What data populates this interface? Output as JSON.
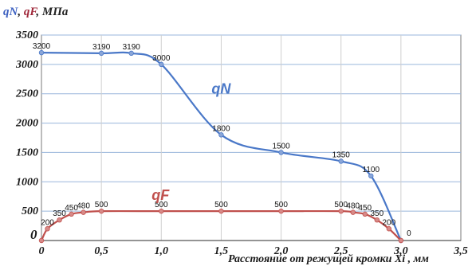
{
  "chart_data": {
    "type": "line",
    "title_parts": [
      {
        "text": "q",
        "color": "#3b5fc0"
      },
      {
        "text": "N",
        "color": "#3b5fc0"
      },
      {
        "text": ", ",
        "color": "#222222"
      },
      {
        "text": "q",
        "color": "#a0283a"
      },
      {
        "text": "F",
        "color": "#a0283a"
      },
      {
        "text": ", МПа",
        "color": "#222222"
      }
    ],
    "xlabel": "Расстояние от режущей кромки Xi , мм",
    "x_ticks": [
      "0",
      "0,5",
      "1,0",
      "1,5",
      "2,0",
      "2,5",
      "3,0",
      "3,5"
    ],
    "y_ticks": [
      "500",
      "1000",
      "1500",
      "2000",
      "2500",
      "3000",
      "3500"
    ],
    "origin_label": "0",
    "xlim": [
      0,
      3.5
    ],
    "ylim": [
      0,
      3500
    ],
    "grid": true,
    "series": [
      {
        "name": "qN",
        "color": "#4a78c8",
        "marker_color": "#8aa6d8",
        "label_pos": [
          1.5,
          2500
        ],
        "points": [
          {
            "x": 0.0,
            "y": 3200,
            "label": "3200"
          },
          {
            "x": 0.5,
            "y": 3190,
            "label": "3190"
          },
          {
            "x": 0.75,
            "y": 3190,
            "label": "3190"
          },
          {
            "x": 1.0,
            "y": 3000,
            "label": "3000"
          },
          {
            "x": 1.5,
            "y": 1800,
            "label": "1800"
          },
          {
            "x": 2.0,
            "y": 1500,
            "label": "1500"
          },
          {
            "x": 2.5,
            "y": 1350,
            "label": "1350"
          },
          {
            "x": 2.75,
            "y": 1100,
            "label": "1100"
          },
          {
            "x": 3.0,
            "y": 0,
            "label": "0"
          }
        ]
      },
      {
        "name": "qF",
        "color": "#c0504d",
        "marker_color": "#d88a88",
        "label_pos": [
          1.0,
          690
        ],
        "points": [
          {
            "x": 0.0,
            "y": 0,
            "label": ""
          },
          {
            "x": 0.05,
            "y": 200,
            "label": "200"
          },
          {
            "x": 0.15,
            "y": 350,
            "label": "350"
          },
          {
            "x": 0.25,
            "y": 450,
            "label": "450"
          },
          {
            "x": 0.35,
            "y": 480,
            "label": "480"
          },
          {
            "x": 0.5,
            "y": 500,
            "label": "500"
          },
          {
            "x": 1.0,
            "y": 500,
            "label": "500"
          },
          {
            "x": 1.5,
            "y": 500,
            "label": "500"
          },
          {
            "x": 2.0,
            "y": 500,
            "label": "500"
          },
          {
            "x": 2.5,
            "y": 500,
            "label": "500"
          },
          {
            "x": 2.6,
            "y": 480,
            "label": "480"
          },
          {
            "x": 2.7,
            "y": 450,
            "label": "450"
          },
          {
            "x": 2.8,
            "y": 350,
            "label": "350"
          },
          {
            "x": 2.9,
            "y": 200,
            "label": "200"
          },
          {
            "x": 3.0,
            "y": 0,
            "label": ""
          }
        ]
      }
    ]
  }
}
